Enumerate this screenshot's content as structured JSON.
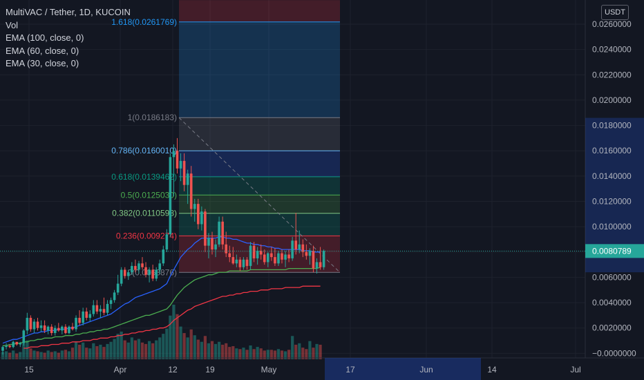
{
  "legend": {
    "title": "MultiVAC / Tether, 1D, KUCOIN",
    "vol": "Vol",
    "ema100": "EMA (100, close, 0)",
    "ema60": "EMA (60, close, 0)",
    "ema30": "EMA (30, close, 0)"
  },
  "currency_badge": "USDT",
  "colors": {
    "background": "#131722",
    "up": "#26a69a",
    "down": "#ef5350",
    "ema30": "#2962ff",
    "ema60": "#4caf50",
    "ema100": "#f23645",
    "axis_text": "#b2b5be"
  },
  "chart_data": {
    "type": "candlestick",
    "symbol": "MultiVAC / Tether",
    "interval": "1D",
    "exchange": "KUCOIN",
    "y_axis": {
      "ticks": [
        "0.0260000",
        "0.0240000",
        "0.0220000",
        "0.0200000",
        "0.0180000",
        "0.0160000",
        "0.0140000",
        "0.0120000",
        "0.0100000",
        "0.0080000",
        "0.0060000",
        "0.0040000",
        "0.0020000",
        "−0.0000000"
      ],
      "range": [
        -0.0005,
        0.0279
      ],
      "current_price": "0.0080789",
      "highlighted_range": [
        0.0064,
        0.0186
      ]
    },
    "x_axis": {
      "ticks": [
        "15",
        "Apr",
        "12",
        "19",
        "May",
        "17",
        "Jun",
        "14",
        "Jul"
      ],
      "highlighted_range": [
        "May 13",
        "Jun 11"
      ]
    },
    "fibonacci": {
      "levels": [
        {
          "ratio": 1.618,
          "price": 0.0261769,
          "label": "1.618(0.0261769)",
          "color": "#2196f3"
        },
        {
          "ratio": 1,
          "price": 0.0186183,
          "label": "1(0.0186183)",
          "color": "#787b86"
        },
        {
          "ratio": 0.786,
          "price": 0.016001,
          "label": "0.786(0.0160010)",
          "color": "#64b5f6"
        },
        {
          "ratio": 0.618,
          "price": 0.0139462,
          "label": "0.618(0.0139462)",
          "color": "#089981"
        },
        {
          "ratio": 0.5,
          "price": 0.012503,
          "label": "0.5(0.0125030)",
          "color": "#4caf50"
        },
        {
          "ratio": 0.382,
          "price": 0.0110598,
          "label": "0.382(0.0110598)",
          "color": "#81c784"
        },
        {
          "ratio": 0.236,
          "price": 0.009274,
          "label": "0.236(0.009274)",
          "color": "#f23645"
        },
        {
          "ratio": 0,
          "price": 0.0063876,
          "label": "0(0.0063876)",
          "color": "#787b86"
        }
      ],
      "top_zone_upper": 0.0279
    },
    "candles": [
      [
        0.0002,
        0.0006,
        -0.0001,
        0.0005
      ],
      [
        0.0005,
        0.0008,
        0.0003,
        0.0006
      ],
      [
        0.0006,
        0.0007,
        0.0004,
        0.0005
      ],
      [
        0.0005,
        0.001,
        0.0004,
        0.0009
      ],
      [
        0.0009,
        0.0009,
        0.0006,
        0.0007
      ],
      [
        0.0007,
        0.0009,
        0.0005,
        0.0008
      ],
      [
        0.0008,
        0.0019,
        0.0006,
        0.0018
      ],
      [
        0.0018,
        0.0032,
        0.0015,
        0.0028
      ],
      [
        0.0028,
        0.003,
        0.0017,
        0.0019
      ],
      [
        0.0019,
        0.0027,
        0.0016,
        0.0025
      ],
      [
        0.0025,
        0.0028,
        0.0018,
        0.002
      ],
      [
        0.002,
        0.0026,
        0.0017,
        0.0022
      ],
      [
        0.0022,
        0.0026,
        0.0016,
        0.0018
      ],
      [
        0.0018,
        0.0022,
        0.0015,
        0.0021
      ],
      [
        0.0021,
        0.0023,
        0.0014,
        0.0016
      ],
      [
        0.0016,
        0.0022,
        0.0014,
        0.002
      ],
      [
        0.002,
        0.0024,
        0.0017,
        0.0018
      ],
      [
        0.0018,
        0.0022,
        0.0015,
        0.0021
      ],
      [
        0.0021,
        0.0023,
        0.0015,
        0.0016
      ],
      [
        0.0016,
        0.0022,
        0.0015,
        0.0021
      ],
      [
        0.0021,
        0.0024,
        0.0018,
        0.0019
      ],
      [
        0.0019,
        0.003,
        0.0017,
        0.0028
      ],
      [
        0.0028,
        0.0034,
        0.0022,
        0.0024
      ],
      [
        0.0024,
        0.0036,
        0.0022,
        0.0033
      ],
      [
        0.0033,
        0.0036,
        0.0026,
        0.0028
      ],
      [
        0.0028,
        0.0034,
        0.0025,
        0.0031
      ],
      [
        0.0031,
        0.0042,
        0.0029,
        0.0038
      ],
      [
        0.0038,
        0.0042,
        0.0031,
        0.0033
      ],
      [
        0.0033,
        0.0038,
        0.0028,
        0.0035
      ],
      [
        0.0035,
        0.0044,
        0.003,
        0.0032
      ],
      [
        0.0032,
        0.0042,
        0.003,
        0.0039
      ],
      [
        0.0039,
        0.0044,
        0.0035,
        0.0042
      ],
      [
        0.0042,
        0.005,
        0.004,
        0.0048
      ],
      [
        0.0048,
        0.0062,
        0.0046,
        0.0055
      ],
      [
        0.0055,
        0.0068,
        0.0053,
        0.0066
      ],
      [
        0.0066,
        0.0068,
        0.0059,
        0.0061
      ],
      [
        0.0061,
        0.0066,
        0.0058,
        0.0064
      ],
      [
        0.0064,
        0.0072,
        0.0062,
        0.0069
      ],
      [
        0.0069,
        0.0074,
        0.0064,
        0.0066
      ],
      [
        0.0066,
        0.0073,
        0.0063,
        0.0071
      ],
      [
        0.0071,
        0.0076,
        0.0066,
        0.0068
      ],
      [
        0.0068,
        0.0072,
        0.006,
        0.0062
      ],
      [
        0.0062,
        0.0068,
        0.0056,
        0.0066
      ],
      [
        0.0066,
        0.007,
        0.0057,
        0.0059
      ],
      [
        0.0059,
        0.0068,
        0.0057,
        0.0066
      ],
      [
        0.0066,
        0.0074,
        0.0063,
        0.0071
      ],
      [
        0.0071,
        0.0085,
        0.0069,
        0.0082
      ],
      [
        0.0082,
        0.0098,
        0.008,
        0.0094
      ],
      [
        0.0094,
        0.0158,
        0.0092,
        0.0155
      ],
      [
        0.0155,
        0.0165,
        0.0124,
        0.016
      ],
      [
        0.016,
        0.017,
        0.0142,
        0.0146
      ],
      [
        0.0146,
        0.0158,
        0.0136,
        0.0152
      ],
      [
        0.0152,
        0.0158,
        0.0128,
        0.0133
      ],
      [
        0.0133,
        0.0145,
        0.0118,
        0.0142
      ],
      [
        0.0142,
        0.0148,
        0.0108,
        0.0114
      ],
      [
        0.0114,
        0.0122,
        0.0104,
        0.0118
      ],
      [
        0.0118,
        0.0122,
        0.0098,
        0.0102
      ],
      [
        0.0102,
        0.0116,
        0.0097,
        0.0112
      ],
      [
        0.0112,
        0.0114,
        0.008,
        0.0085
      ],
      [
        0.0085,
        0.0095,
        0.0075,
        0.0091
      ],
      [
        0.0091,
        0.0096,
        0.0078,
        0.0082
      ],
      [
        0.0082,
        0.009,
        0.0076,
        0.0086
      ],
      [
        0.0086,
        0.0108,
        0.0084,
        0.0104
      ],
      [
        0.0104,
        0.0108,
        0.0082,
        0.0086
      ],
      [
        0.0086,
        0.0096,
        0.0076,
        0.0079
      ],
      [
        0.0079,
        0.0085,
        0.0072,
        0.0076
      ],
      [
        0.0076,
        0.0084,
        0.007,
        0.0071
      ],
      [
        0.0071,
        0.0078,
        0.0068,
        0.0074
      ],
      [
        0.0074,
        0.0076,
        0.0065,
        0.0068
      ],
      [
        0.0068,
        0.0076,
        0.0066,
        0.0074
      ],
      [
        0.0074,
        0.0076,
        0.0066,
        0.0069
      ],
      [
        0.0069,
        0.0088,
        0.0066,
        0.0085
      ],
      [
        0.0085,
        0.0088,
        0.0072,
        0.0075
      ],
      [
        0.0075,
        0.0084,
        0.007,
        0.0081
      ],
      [
        0.0081,
        0.0086,
        0.0074,
        0.0078
      ],
      [
        0.0078,
        0.0082,
        0.007,
        0.0072
      ],
      [
        0.0072,
        0.008,
        0.0068,
        0.0079
      ],
      [
        0.0079,
        0.0084,
        0.0073,
        0.0076
      ],
      [
        0.0076,
        0.0083,
        0.0069,
        0.0071
      ],
      [
        0.0071,
        0.0081,
        0.0069,
        0.0079
      ],
      [
        0.0079,
        0.0082,
        0.0071,
        0.0074
      ],
      [
        0.0074,
        0.0081,
        0.0068,
        0.0078
      ],
      [
        0.0078,
        0.0082,
        0.0072,
        0.0075
      ],
      [
        0.0075,
        0.0092,
        0.0073,
        0.0089
      ],
      [
        0.0089,
        0.0111,
        0.0078,
        0.0082
      ],
      [
        0.0082,
        0.0097,
        0.0079,
        0.0086
      ],
      [
        0.0086,
        0.009,
        0.0076,
        0.008
      ],
      [
        0.008,
        0.0086,
        0.0074,
        0.0077
      ],
      [
        0.0077,
        0.0083,
        0.007,
        0.0081
      ],
      [
        0.0081,
        0.0085,
        0.0064,
        0.0067
      ],
      [
        0.0067,
        0.0075,
        0.0063,
        0.0072
      ],
      [
        0.0072,
        0.0084,
        0.0066,
        0.0068
      ],
      [
        0.0068,
        0.0082,
        0.0066,
        0.0081
      ]
    ],
    "volume": [
      1,
      1.1,
      0.9,
      1.2,
      0.8,
      1,
      2.2,
      2.6,
      1.5,
      1.2,
      1.1,
      1,
      0.9,
      1.2,
      1,
      1.1,
      0.9,
      1.2,
      1.3,
      1.1,
      1.6,
      2.4,
      2,
      2.3,
      1.6,
      1.5,
      2.2,
      1.8,
      2,
      1.7,
      2.1,
      2.4,
      2.8,
      3.5,
      3.8,
      2.6,
      2.3,
      3,
      2.6,
      2.8,
      2.3,
      2.1,
      2.5,
      2.2,
      2.6,
      3,
      3.5,
      4.2,
      6,
      7.5,
      6.2,
      4.5,
      3.6,
      3,
      4.1,
      3.3,
      2.7,
      2.4,
      3.2,
      2.2,
      2.5,
      2.1,
      2.4,
      2,
      2.2,
      1.7,
      1.8,
      1.5,
      1.4,
      1.6,
      1.3,
      1.9,
      1.4,
      1.7,
      1.5,
      1.2,
      1.3,
      1.3,
      1.2,
      1.4,
      1.2,
      1.1,
      1.3,
      3.2,
      2,
      2.2,
      1.6,
      1.4,
      2.5,
      1.6,
      2.1,
      2
    ],
    "ema30": [
      0.0008,
      0.0009,
      0.001,
      0.0011,
      0.0011,
      0.0012,
      0.0013,
      0.0014,
      0.0015,
      0.0016,
      0.0016,
      0.0017,
      0.0017,
      0.0018,
      0.0018,
      0.0018,
      0.0019,
      0.0019,
      0.0019,
      0.002,
      0.002,
      0.0021,
      0.0022,
      0.0023,
      0.0024,
      0.0025,
      0.0026,
      0.0027,
      0.0028,
      0.0029,
      0.003,
      0.0031,
      0.0033,
      0.0035,
      0.0037,
      0.0039,
      0.004,
      0.0042,
      0.0044,
      0.0045,
      0.0046,
      0.0047,
      0.0048,
      0.0049,
      0.005,
      0.0051,
      0.0053,
      0.0055,
      0.0061,
      0.0066,
      0.0071,
      0.0076,
      0.0079,
      0.0082,
      0.0084,
      0.0087,
      0.0089,
      0.0091,
      0.0091,
      0.0091,
      0.0091,
      0.0091,
      0.0092,
      0.0092,
      0.0091,
      0.0091,
      0.009,
      0.009,
      0.0089,
      0.0088,
      0.0087,
      0.0087,
      0.0086,
      0.0086,
      0.0085,
      0.0085,
      0.0084,
      0.0084,
      0.0083,
      0.0083,
      0.0082,
      0.0082,
      0.0082,
      0.0082,
      0.0082,
      0.0082,
      0.0081,
      0.0081,
      0.0081,
      0.008,
      0.008,
      0.008
    ],
    "ema60": [
      0.0006,
      0.0006,
      0.0007,
      0.0007,
      0.0008,
      0.0008,
      0.0009,
      0.0009,
      0.001,
      0.001,
      0.0011,
      0.0011,
      0.0012,
      0.0012,
      0.0012,
      0.0013,
      0.0013,
      0.0013,
      0.0014,
      0.0014,
      0.0014,
      0.0015,
      0.0015,
      0.0016,
      0.0016,
      0.0017,
      0.0017,
      0.0018,
      0.0018,
      0.0019,
      0.0019,
      0.002,
      0.0021,
      0.0022,
      0.0023,
      0.0024,
      0.0025,
      0.0026,
      0.0027,
      0.0028,
      0.0029,
      0.003,
      0.003,
      0.0031,
      0.0032,
      0.0033,
      0.0034,
      0.0035,
      0.0038,
      0.0042,
      0.0046,
      0.0049,
      0.0052,
      0.0054,
      0.0056,
      0.0058,
      0.0059,
      0.006,
      0.0061,
      0.0062,
      0.0062,
      0.0063,
      0.0064,
      0.0064,
      0.0064,
      0.0065,
      0.0065,
      0.0065,
      0.0065,
      0.0065,
      0.0065,
      0.0066,
      0.0066,
      0.0066,
      0.0066,
      0.0066,
      0.0066,
      0.0066,
      0.0066,
      0.0066,
      0.0066,
      0.0066,
      0.0067,
      0.0067,
      0.0067,
      0.0067,
      0.0067,
      0.0067,
      0.0067,
      0.0067,
      0.0067,
      0.0068
    ],
    "ema100_start_index": 6,
    "ema100": [
      0.0004,
      0.0004,
      0.0005,
      0.0005,
      0.0005,
      0.0006,
      0.0006,
      0.0006,
      0.0007,
      0.0007,
      0.0007,
      0.0008,
      0.0008,
      0.0008,
      0.0009,
      0.0009,
      0.0009,
      0.001,
      0.001,
      0.001,
      0.0011,
      0.0011,
      0.0012,
      0.0012,
      0.0012,
      0.0013,
      0.0013,
      0.0014,
      0.0014,
      0.0015,
      0.0015,
      0.0016,
      0.0016,
      0.0017,
      0.0017,
      0.0018,
      0.0018,
      0.0019,
      0.0019,
      0.002,
      0.002,
      0.0021,
      0.0023,
      0.0026,
      0.0028,
      0.003,
      0.0032,
      0.0034,
      0.0035,
      0.0037,
      0.0038,
      0.0039,
      0.004,
      0.0041,
      0.0042,
      0.0043,
      0.0044,
      0.0045,
      0.0045,
      0.0046,
      0.0046,
      0.0047,
      0.0047,
      0.0048,
      0.0048,
      0.0049,
      0.0049,
      0.0049,
      0.005,
      0.005,
      0.005,
      0.0051,
      0.0051,
      0.0051,
      0.0051,
      0.0052,
      0.0052,
      0.0052,
      0.0052,
      0.0052,
      0.0053,
      0.0053,
      0.0053,
      0.0053,
      0.0053,
      0.0053
    ]
  }
}
